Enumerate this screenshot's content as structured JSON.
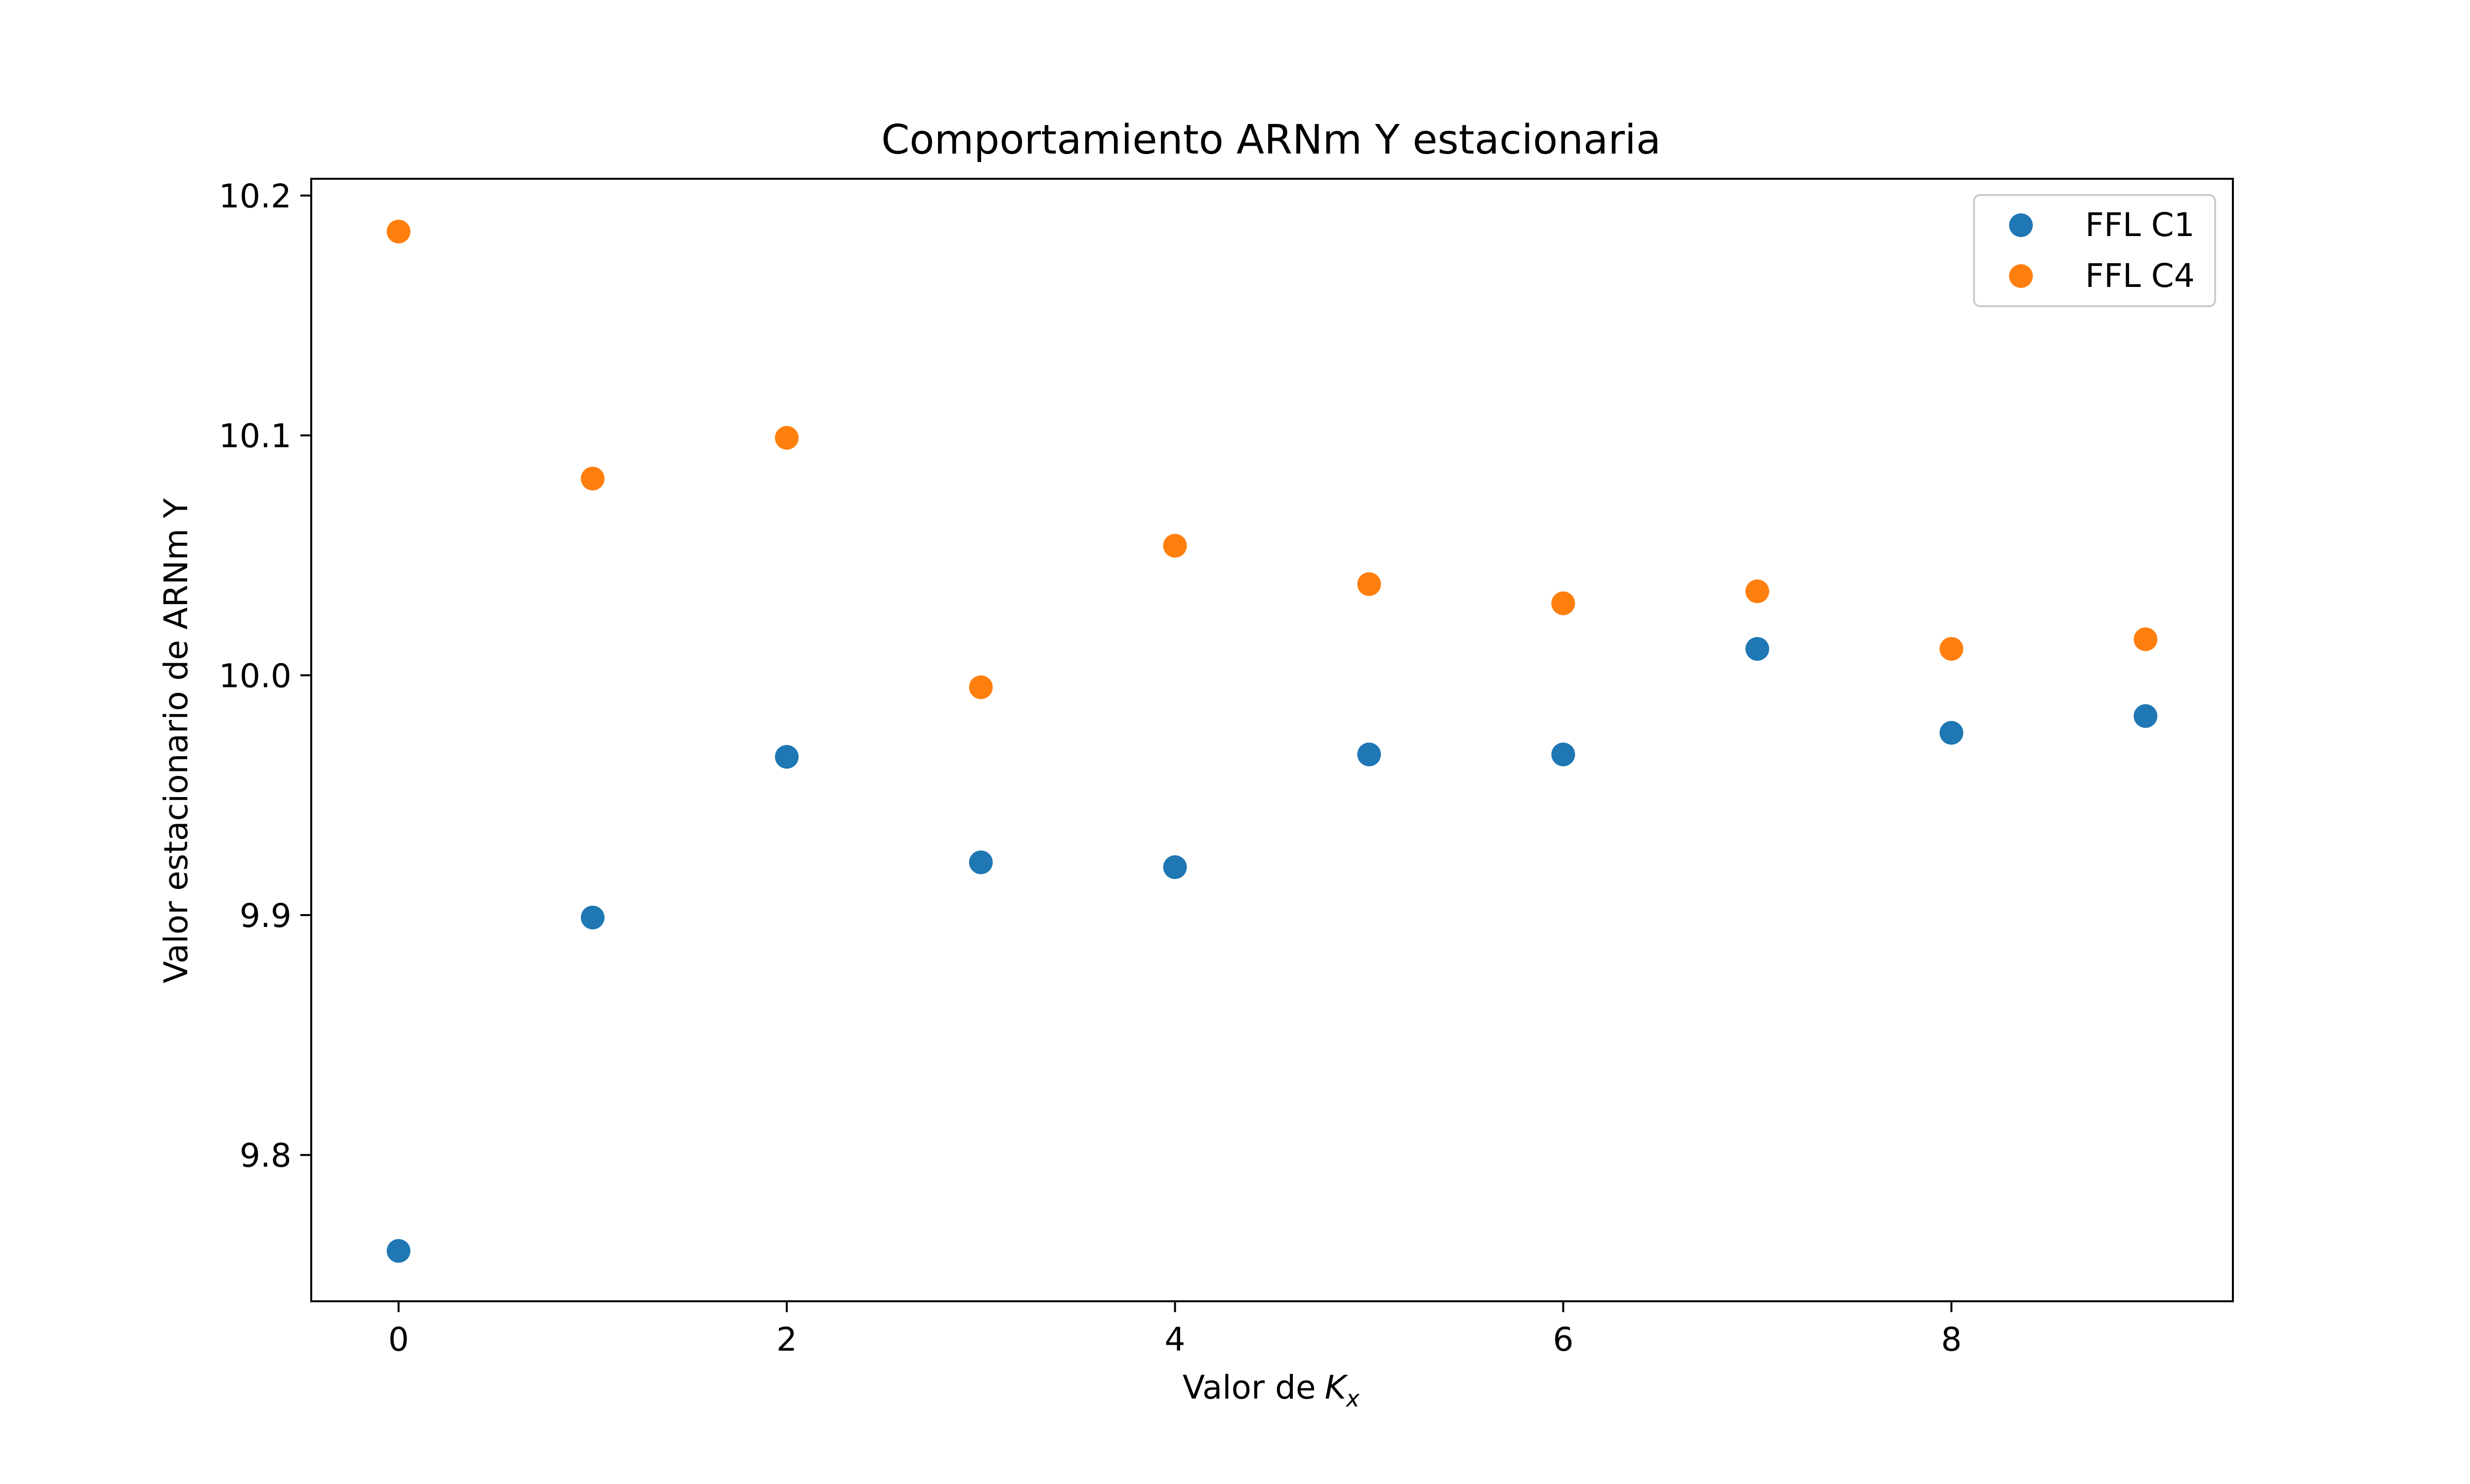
{
  "chart_data": {
    "type": "scatter",
    "title": "Comportamiento ARNm Y estacionaria",
    "xlabel": "Valor de",
    "xlabel_symbol": "K",
    "xlabel_subscript": "x",
    "ylabel": "Valor estacionario de ARNm Y",
    "xlim": [
      -0.45,
      9.45
    ],
    "ylim": [
      9.739,
      10.207
    ],
    "x_ticks": [
      "0",
      "2",
      "4",
      "6",
      "8"
    ],
    "y_ticks": [
      "9.8",
      "9.9",
      "10.0",
      "10.1",
      "10.2"
    ],
    "grid": false,
    "legend_position": "top-right",
    "series": [
      {
        "name": "FFL C1",
        "color": "#1f77b4",
        "points": [
          {
            "x": 0,
            "y": 9.76
          },
          {
            "x": 1,
            "y": 9.899
          },
          {
            "x": 2,
            "y": 9.966
          },
          {
            "x": 3,
            "y": 9.922
          },
          {
            "x": 4,
            "y": 9.92
          },
          {
            "x": 5,
            "y": 9.967
          },
          {
            "x": 6,
            "y": 9.967
          },
          {
            "x": 7,
            "y": 10.011
          },
          {
            "x": 8,
            "y": 9.976
          },
          {
            "x": 9,
            "y": 9.983
          }
        ]
      },
      {
        "name": "FFL C4",
        "color": "#ff7f0e",
        "points": [
          {
            "x": 0,
            "y": 10.185
          },
          {
            "x": 1,
            "y": 10.082
          },
          {
            "x": 2,
            "y": 10.099
          },
          {
            "x": 3,
            "y": 9.995
          },
          {
            "x": 4,
            "y": 10.054
          },
          {
            "x": 5,
            "y": 10.038
          },
          {
            "x": 6,
            "y": 10.03
          },
          {
            "x": 7,
            "y": 10.035
          },
          {
            "x": 8,
            "y": 10.011
          },
          {
            "x": 9,
            "y": 10.015
          }
        ]
      }
    ]
  }
}
